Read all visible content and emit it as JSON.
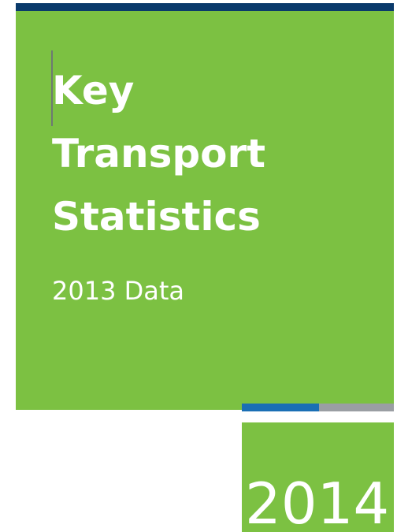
{
  "cover": {
    "title_lines": [
      "Key",
      "Transport",
      "Statistics"
    ],
    "subtitle": "2013 Data",
    "year": "2014"
  }
}
